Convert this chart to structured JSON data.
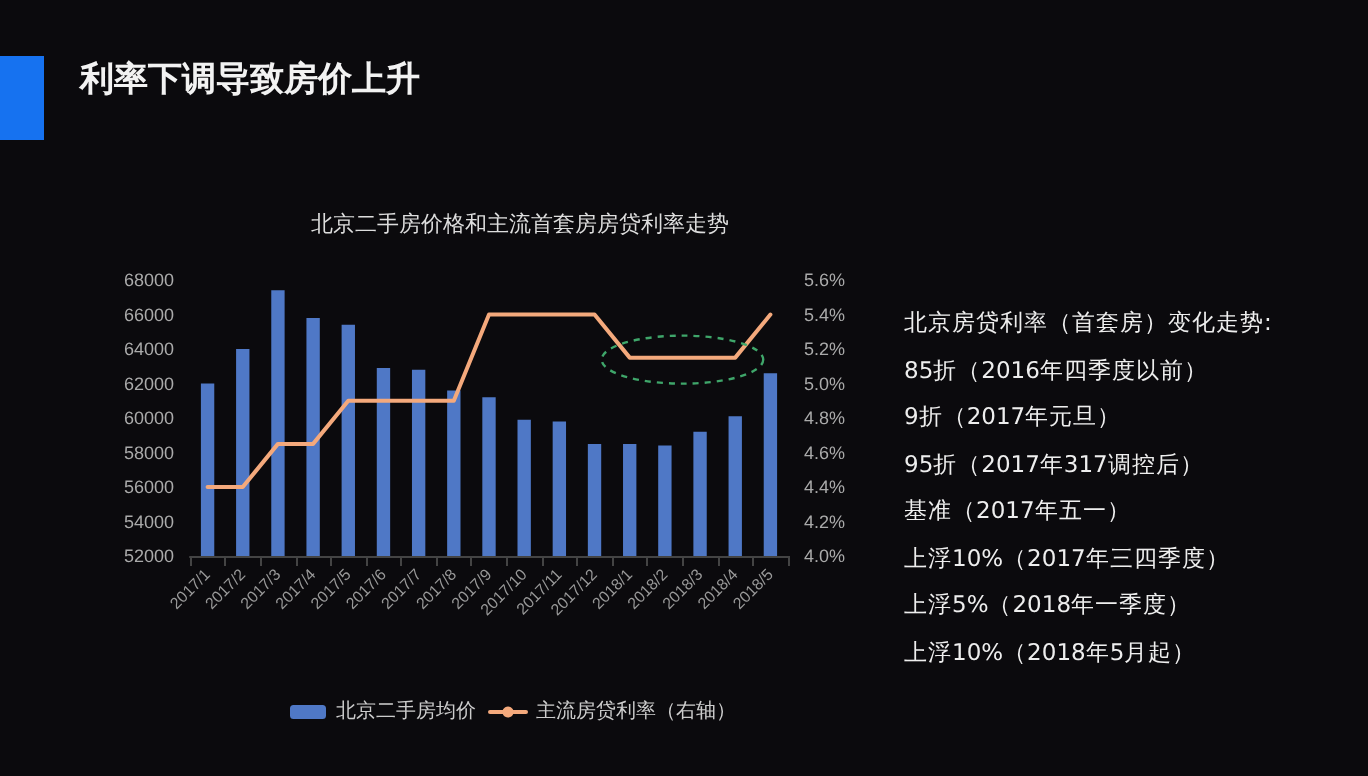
{
  "chart_data": {
    "type": "bar",
    "title": "利率下调导致房价上升",
    "subtitle": "北京二手房价格和主流首套房房贷利率走势",
    "categories": [
      "2017/1",
      "2017/2",
      "2017/3",
      "2017/4",
      "2017/5",
      "2017/6",
      "2017/7",
      "2017/8",
      "2017/9",
      "2017/10",
      "2017/11",
      "2017/12",
      "2018/1",
      "2018/2",
      "2018/3",
      "2018/4",
      "2018/5"
    ],
    "series": [
      {
        "name": "北京二手房均价",
        "color": "#4f78c6",
        "values": [
          62000,
          64000,
          67400,
          65800,
          65400,
          62900,
          62800,
          61600,
          61200,
          59900,
          59800,
          58500,
          58500,
          58400,
          59200,
          60100,
          62600
        ]
      },
      {
        "name": "主流房贷利率（右轴）",
        "type": "line",
        "axis": "y2",
        "color": "#f4a97c",
        "values": [
          4.4,
          4.4,
          4.65,
          4.65,
          4.9,
          4.9,
          4.9,
          4.9,
          5.4,
          5.4,
          5.4,
          5.4,
          5.15,
          5.15,
          5.15,
          5.15,
          5.4
        ]
      }
    ],
    "ylim": [
      52000,
      68000
    ],
    "yticks": [
      52000,
      54000,
      56000,
      58000,
      60000,
      62000,
      64000,
      66000,
      68000
    ],
    "y2lim": [
      4.0,
      5.6
    ],
    "y2ticks": [
      {
        "value": 4.0,
        "label": "4.0%"
      },
      {
        "value": 4.2,
        "label": "4.2%"
      },
      {
        "value": 4.4,
        "label": "4.4%"
      },
      {
        "value": 4.6,
        "label": "4.6%"
      },
      {
        "value": 4.8,
        "label": "4.8%"
      },
      {
        "value": 5.0,
        "label": "5.0%"
      },
      {
        "value": 5.2,
        "label": "5.2%"
      },
      {
        "value": 5.4,
        "label": "5.4%"
      },
      {
        "value": 5.6,
        "label": "5.6%"
      }
    ],
    "annotations": [
      "北京房贷利率（首套房）变化走势:",
      "85折（2016年四季度以前）",
      "9折（2017年元旦）",
      "95折（2017年317调控后）",
      "基准（2017年五一）",
      "上浮10%（2017年三四季度）",
      "上浮5%（2018年一季度）",
      "上浮10%（2018年5月起）"
    ],
    "legend": "bottom",
    "grid": false,
    "marker": "none",
    "line_style": "solid"
  }
}
